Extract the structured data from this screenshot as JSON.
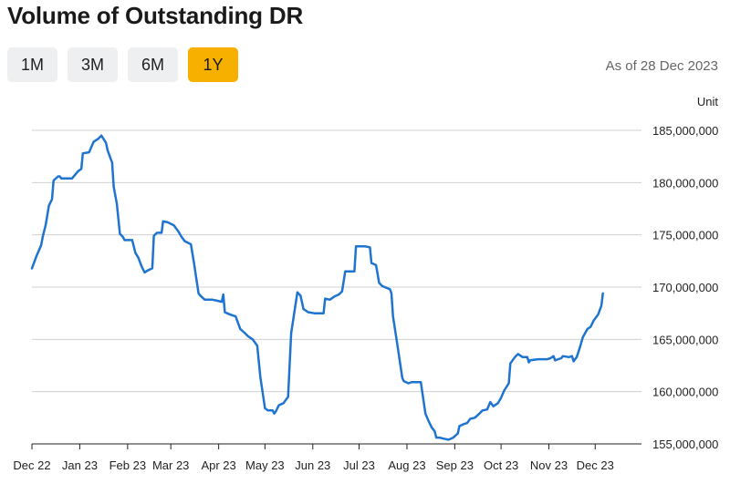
{
  "header": {
    "title": "Volume of Outstanding DR"
  },
  "ranges": [
    {
      "label": "1M",
      "active": false
    },
    {
      "label": "3M",
      "active": false
    },
    {
      "label": "6M",
      "active": false
    },
    {
      "label": "1Y",
      "active": true
    }
  ],
  "as_of": "As of 28 Dec 2023",
  "unit_label": "Unit",
  "colors": {
    "line": "#1f74d0",
    "active_range": "#f8b000",
    "grid": "#d0d0d0"
  },
  "chart_data": {
    "type": "line",
    "title": "Volume of Outstanding DR",
    "ylabel": "Unit",
    "xlabel": "",
    "grid": true,
    "legend": "none",
    "xlim": [
      "2022-12-01",
      "2023-12-31"
    ],
    "ylim": [
      155000000,
      185000000
    ],
    "x_ticks": [
      {
        "date": "2022-12-01",
        "label": "Dec 22"
      },
      {
        "date": "2023-01-01",
        "label": "Jan 23"
      },
      {
        "date": "2023-02-01",
        "label": "Feb 23"
      },
      {
        "date": "2023-03-01",
        "label": "Mar 23"
      },
      {
        "date": "2023-04-01",
        "label": "Apr 23"
      },
      {
        "date": "2023-05-01",
        "label": "May 23"
      },
      {
        "date": "2023-06-01",
        "label": "Jun 23"
      },
      {
        "date": "2023-07-01",
        "label": "Jul 23"
      },
      {
        "date": "2023-08-01",
        "label": "Aug 23"
      },
      {
        "date": "2023-09-01",
        "label": "Sep 23"
      },
      {
        "date": "2023-10-01",
        "label": "Oct 23"
      },
      {
        "date": "2023-11-01",
        "label": "Nov 23"
      },
      {
        "date": "2023-12-01",
        "label": "Dec 23"
      }
    ],
    "y_ticks": [
      {
        "value": 185000000,
        "label": "185,000,000"
      },
      {
        "value": 180000000,
        "label": "180,000,000"
      },
      {
        "value": 175000000,
        "label": "175,000,000"
      },
      {
        "value": 170000000,
        "label": "170,000,000"
      },
      {
        "value": 165000000,
        "label": "165,000,000"
      },
      {
        "value": 160000000,
        "label": "160,000,000"
      },
      {
        "value": 155000000,
        "label": "155,000,000"
      }
    ],
    "series": [
      {
        "points": [
          [
            "2022-12-01",
            171800000
          ],
          [
            "2022-12-04",
            173000000
          ],
          [
            "2022-12-07",
            174000000
          ],
          [
            "2022-12-08",
            174800000
          ],
          [
            "2022-12-10",
            176000000
          ],
          [
            "2022-12-12",
            177800000
          ],
          [
            "2022-12-14",
            178400000
          ],
          [
            "2022-12-15",
            180200000
          ],
          [
            "2022-12-18",
            180600000
          ],
          [
            "2022-12-19",
            180600000
          ],
          [
            "2022-12-20",
            180400000
          ],
          [
            "2022-12-27",
            180400000
          ],
          [
            "2022-12-31",
            181100000
          ],
          [
            "2023-01-02",
            181300000
          ],
          [
            "2023-01-03",
            182800000
          ],
          [
            "2023-01-07",
            182900000
          ],
          [
            "2023-01-10",
            183900000
          ],
          [
            "2023-01-13",
            184200000
          ],
          [
            "2023-01-15",
            184500000
          ],
          [
            "2023-01-18",
            183800000
          ],
          [
            "2023-01-19",
            183100000
          ],
          [
            "2023-01-22",
            181900000
          ],
          [
            "2023-01-23",
            179600000
          ],
          [
            "2023-01-25",
            178000000
          ],
          [
            "2023-01-27",
            175100000
          ],
          [
            "2023-01-29",
            174800000
          ],
          [
            "2023-01-30",
            174500000
          ],
          [
            "2023-02-04",
            174500000
          ],
          [
            "2023-02-06",
            173300000
          ],
          [
            "2023-02-08",
            172800000
          ],
          [
            "2023-02-10",
            172000000
          ],
          [
            "2023-02-12",
            171400000
          ],
          [
            "2023-02-14",
            171600000
          ],
          [
            "2023-02-17",
            171800000
          ],
          [
            "2023-02-18",
            174900000
          ],
          [
            "2023-02-20",
            175200000
          ],
          [
            "2023-02-23",
            175200000
          ],
          [
            "2023-02-24",
            176300000
          ],
          [
            "2023-02-27",
            176200000
          ],
          [
            "2023-03-03",
            175900000
          ],
          [
            "2023-03-06",
            175300000
          ],
          [
            "2023-03-08",
            174800000
          ],
          [
            "2023-03-10",
            174400000
          ],
          [
            "2023-03-14",
            174100000
          ],
          [
            "2023-03-16",
            172300000
          ],
          [
            "2023-03-19",
            169400000
          ],
          [
            "2023-03-20",
            169200000
          ],
          [
            "2023-03-23",
            168800000
          ],
          [
            "2023-03-28",
            168800000
          ],
          [
            "2023-03-31",
            168700000
          ],
          [
            "2023-04-03",
            168600000
          ],
          [
            "2023-04-04",
            169300000
          ],
          [
            "2023-04-05",
            167600000
          ],
          [
            "2023-04-08",
            167400000
          ],
          [
            "2023-04-12",
            167200000
          ],
          [
            "2023-04-15",
            166000000
          ],
          [
            "2023-04-18",
            165600000
          ],
          [
            "2023-04-20",
            165300000
          ],
          [
            "2023-04-23",
            165000000
          ],
          [
            "2023-04-26",
            164400000
          ],
          [
            "2023-04-28",
            161400000
          ],
          [
            "2023-05-01",
            158400000
          ],
          [
            "2023-05-03",
            158200000
          ],
          [
            "2023-05-06",
            158200000
          ],
          [
            "2023-05-07",
            157900000
          ],
          [
            "2023-05-08",
            158100000
          ],
          [
            "2023-05-10",
            158700000
          ],
          [
            "2023-05-13",
            158900000
          ],
          [
            "2023-05-15",
            159300000
          ],
          [
            "2023-05-16",
            159500000
          ],
          [
            "2023-05-18",
            165600000
          ],
          [
            "2023-05-22",
            169500000
          ],
          [
            "2023-05-24",
            169200000
          ],
          [
            "2023-05-26",
            167900000
          ],
          [
            "2023-05-29",
            167600000
          ],
          [
            "2023-06-02",
            167500000
          ],
          [
            "2023-06-08",
            167500000
          ],
          [
            "2023-06-09",
            168900000
          ],
          [
            "2023-06-12",
            168800000
          ],
          [
            "2023-06-15",
            169100000
          ],
          [
            "2023-06-18",
            169300000
          ],
          [
            "2023-06-20",
            169600000
          ],
          [
            "2023-06-22",
            171500000
          ],
          [
            "2023-06-28",
            171500000
          ],
          [
            "2023-06-29",
            173900000
          ],
          [
            "2023-07-05",
            173900000
          ],
          [
            "2023-07-08",
            173800000
          ],
          [
            "2023-07-09",
            172300000
          ],
          [
            "2023-07-12",
            172100000
          ],
          [
            "2023-07-14",
            170400000
          ],
          [
            "2023-07-16",
            170100000
          ],
          [
            "2023-07-21",
            169800000
          ],
          [
            "2023-07-22",
            169400000
          ],
          [
            "2023-07-23",
            167200000
          ],
          [
            "2023-07-26",
            164300000
          ],
          [
            "2023-07-29",
            161300000
          ],
          [
            "2023-07-30",
            161000000
          ],
          [
            "2023-08-02",
            160800000
          ],
          [
            "2023-08-04",
            160900000
          ],
          [
            "2023-08-10",
            160900000
          ],
          [
            "2023-08-13",
            157900000
          ],
          [
            "2023-08-15",
            157200000
          ],
          [
            "2023-08-17",
            156600000
          ],
          [
            "2023-08-19",
            156200000
          ],
          [
            "2023-08-20",
            155600000
          ],
          [
            "2023-08-22",
            155600000
          ],
          [
            "2023-08-25",
            155500000
          ],
          [
            "2023-08-28",
            155400000
          ],
          [
            "2023-08-31",
            155600000
          ],
          [
            "2023-09-03",
            156000000
          ],
          [
            "2023-09-04",
            156700000
          ],
          [
            "2023-09-07",
            156900000
          ],
          [
            "2023-09-09",
            157000000
          ],
          [
            "2023-09-11",
            157400000
          ],
          [
            "2023-09-14",
            157500000
          ],
          [
            "2023-09-17",
            157900000
          ],
          [
            "2023-09-19",
            158200000
          ],
          [
            "2023-09-22",
            158300000
          ],
          [
            "2023-09-24",
            159000000
          ],
          [
            "2023-09-26",
            158600000
          ],
          [
            "2023-09-29",
            158900000
          ],
          [
            "2023-10-01",
            159400000
          ],
          [
            "2023-10-03",
            160100000
          ],
          [
            "2023-10-06",
            160800000
          ],
          [
            "2023-10-07",
            162700000
          ],
          [
            "2023-10-10",
            163300000
          ],
          [
            "2023-10-12",
            163600000
          ],
          [
            "2023-10-15",
            163300000
          ],
          [
            "2023-10-18",
            163300000
          ],
          [
            "2023-10-19",
            162800000
          ],
          [
            "2023-10-20",
            163000000
          ],
          [
            "2023-10-25",
            163100000
          ],
          [
            "2023-10-31",
            163100000
          ],
          [
            "2023-11-02",
            163200000
          ],
          [
            "2023-11-04",
            163400000
          ],
          [
            "2023-11-05",
            163000000
          ],
          [
            "2023-11-09",
            163200000
          ],
          [
            "2023-11-10",
            163400000
          ],
          [
            "2023-11-14",
            163300000
          ],
          [
            "2023-11-16",
            163400000
          ],
          [
            "2023-11-17",
            162900000
          ],
          [
            "2023-11-19",
            163300000
          ],
          [
            "2023-11-21",
            164200000
          ],
          [
            "2023-11-23",
            165200000
          ],
          [
            "2023-11-26",
            166000000
          ],
          [
            "2023-11-28",
            166200000
          ],
          [
            "2023-11-30",
            166800000
          ],
          [
            "2023-12-03",
            167400000
          ],
          [
            "2023-12-05",
            168200000
          ],
          [
            "2023-12-06",
            169400000
          ]
        ]
      }
    ]
  }
}
